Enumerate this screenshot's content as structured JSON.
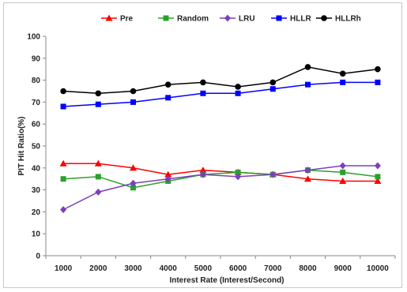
{
  "chart_data": {
    "type": "line",
    "title": "",
    "xlabel": "Interest Rate (Interest/Second)",
    "ylabel": "PIT Hit Ratio(%)",
    "ylim": [
      0,
      100
    ],
    "yticks": [
      0,
      10,
      20,
      30,
      40,
      50,
      60,
      70,
      80,
      90,
      100
    ],
    "categories": [
      "1000",
      "2000",
      "3000",
      "4000",
      "5000",
      "6000",
      "7000",
      "8000",
      "9000",
      "10000"
    ],
    "grid": false,
    "legend": "top",
    "series": [
      {
        "name": "Pre",
        "color": "#ff0000",
        "marker": "triangle",
        "values": [
          42,
          42,
          40,
          37,
          39,
          38,
          37,
          35,
          34,
          34
        ]
      },
      {
        "name": "Random",
        "color": "#2ca02c",
        "marker": "square",
        "values": [
          35,
          36,
          31,
          34,
          37,
          38,
          37,
          39,
          38,
          36
        ]
      },
      {
        "name": "LRU",
        "color": "#7b3fbf",
        "marker": "diamond",
        "values": [
          21,
          29,
          33,
          35,
          37,
          36,
          37,
          39,
          41,
          41
        ]
      },
      {
        "name": "HLLR",
        "color": "#0000ff",
        "marker": "square",
        "values": [
          68,
          69,
          70,
          72,
          74,
          74,
          76,
          78,
          79,
          79
        ]
      },
      {
        "name": "HLLRh",
        "color": "#000000",
        "marker": "circle",
        "values": [
          75,
          74,
          75,
          78,
          79,
          77,
          79,
          86,
          83,
          85
        ]
      }
    ]
  }
}
